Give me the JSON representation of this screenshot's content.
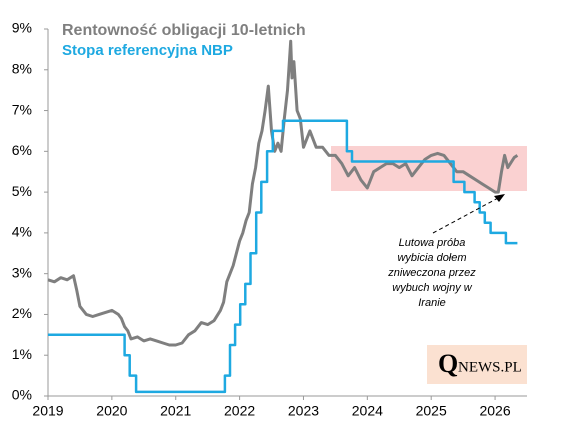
{
  "chart_data": {
    "type": "line",
    "series": [
      {
        "name": "Rentowność obligacji 10-letnich",
        "color": "#7f7f7f",
        "x": [
          2019.0,
          2019.1,
          2019.2,
          2019.3,
          2019.4,
          2019.45,
          2019.5,
          2019.6,
          2019.7,
          2019.8,
          2019.9,
          2020.0,
          2020.1,
          2020.15,
          2020.2,
          2020.25,
          2020.3,
          2020.4,
          2020.5,
          2020.6,
          2020.7,
          2020.8,
          2020.9,
          2021.0,
          2021.1,
          2021.2,
          2021.3,
          2021.4,
          2021.5,
          2021.6,
          2021.7,
          2021.75,
          2021.8,
          2021.85,
          2021.9,
          2022.0,
          2022.05,
          2022.1,
          2022.15,
          2022.2,
          2022.25,
          2022.3,
          2022.35,
          2022.4,
          2022.45,
          2022.5,
          2022.55,
          2022.6,
          2022.65,
          2022.7,
          2022.75,
          2022.8,
          2022.82,
          2022.85,
          2022.9,
          2022.95,
          2023.0,
          2023.1,
          2023.2,
          2023.3,
          2023.4,
          2023.5,
          2023.6,
          2023.7,
          2023.8,
          2023.9,
          2024.0,
          2024.1,
          2024.2,
          2024.3,
          2024.4,
          2024.5,
          2024.6,
          2024.7,
          2024.8,
          2024.9,
          2025.0,
          2025.1,
          2025.2,
          2025.3,
          2025.4,
          2025.5,
          2025.6,
          2025.7,
          2025.8,
          2025.9,
          2026.0,
          2026.05,
          2026.1,
          2026.15,
          2026.2,
          2026.3,
          2026.35
        ],
        "values": [
          2.85,
          2.8,
          2.9,
          2.85,
          2.95,
          2.6,
          2.2,
          2.0,
          1.95,
          2.0,
          2.05,
          2.1,
          2.0,
          1.9,
          1.7,
          1.6,
          1.4,
          1.45,
          1.35,
          1.4,
          1.35,
          1.3,
          1.25,
          1.25,
          1.3,
          1.5,
          1.6,
          1.8,
          1.75,
          1.85,
          2.1,
          2.3,
          2.8,
          3.0,
          3.2,
          3.8,
          4.0,
          4.3,
          4.5,
          5.2,
          5.6,
          6.2,
          6.5,
          7.0,
          7.6,
          6.5,
          6.0,
          6.2,
          6.0,
          6.8,
          7.5,
          8.7,
          7.8,
          8.2,
          7.0,
          6.8,
          6.1,
          6.5,
          6.1,
          6.1,
          5.9,
          5.9,
          5.7,
          5.4,
          5.6,
          5.3,
          5.1,
          5.5,
          5.6,
          5.7,
          5.7,
          5.6,
          5.7,
          5.4,
          5.6,
          5.8,
          5.9,
          5.95,
          5.9,
          5.7,
          5.5,
          5.5,
          5.4,
          5.3,
          5.2,
          5.1,
          5.0,
          5.0,
          5.5,
          5.9,
          5.6,
          5.85,
          5.9
        ]
      },
      {
        "name": "Stopa referencyjna NBP",
        "color": "#1ea9e1",
        "x": [
          2019.0,
          2020.2,
          2020.2,
          2020.28,
          2020.28,
          2020.38,
          2020.38,
          2021.77,
          2021.77,
          2021.85,
          2021.85,
          2021.93,
          2021.93,
          2022.01,
          2022.01,
          2022.09,
          2022.09,
          2022.17,
          2022.17,
          2022.26,
          2022.26,
          2022.34,
          2022.34,
          2022.43,
          2022.43,
          2022.52,
          2022.52,
          2022.68,
          2022.68,
          2023.68,
          2023.68,
          2023.76,
          2023.76,
          2025.35,
          2025.35,
          2025.52,
          2025.52,
          2025.68,
          2025.68,
          2025.76,
          2025.76,
          2025.84,
          2025.84,
          2025.93,
          2025.93,
          2026.17,
          2026.17,
          2026.35
        ],
        "values": [
          1.5,
          1.5,
          1.0,
          1.0,
          0.5,
          0.5,
          0.1,
          0.1,
          0.5,
          0.5,
          1.25,
          1.25,
          1.75,
          1.75,
          2.25,
          2.25,
          2.75,
          2.75,
          3.5,
          3.5,
          4.5,
          4.5,
          5.25,
          5.25,
          6.0,
          6.0,
          6.5,
          6.5,
          6.75,
          6.75,
          6.0,
          6.0,
          5.75,
          5.75,
          5.25,
          5.25,
          5.0,
          5.0,
          4.75,
          4.75,
          4.5,
          4.5,
          4.25,
          4.25,
          4.0,
          4.0,
          3.75,
          3.75
        ]
      }
    ],
    "xlim": [
      2019,
      2026.5
    ],
    "xticks": [
      2019,
      2020,
      2021,
      2022,
      2023,
      2024,
      2025,
      2026
    ],
    "ylim": [
      0,
      9
    ],
    "yticks": [
      {
        "value": 0,
        "label": "0%"
      },
      {
        "value": 1,
        "label": "1%"
      },
      {
        "value": 2,
        "label": "2%"
      },
      {
        "value": 3,
        "label": "3%"
      },
      {
        "value": 4,
        "label": "4%"
      },
      {
        "value": 5,
        "label": "5%"
      },
      {
        "value": 6,
        "label": "6%"
      },
      {
        "value": 7,
        "label": "7%"
      },
      {
        "value": 8,
        "label": "8%"
      },
      {
        "value": 9,
        "label": "9%"
      }
    ],
    "grid": false,
    "annotation": [
      "Lutowa próba",
      "wybicia dołem",
      "zniweczona przez",
      "wybuch wojny w",
      "Iranie"
    ],
    "logo": {
      "first": "Q",
      "rest": "NEWS.PL"
    }
  }
}
